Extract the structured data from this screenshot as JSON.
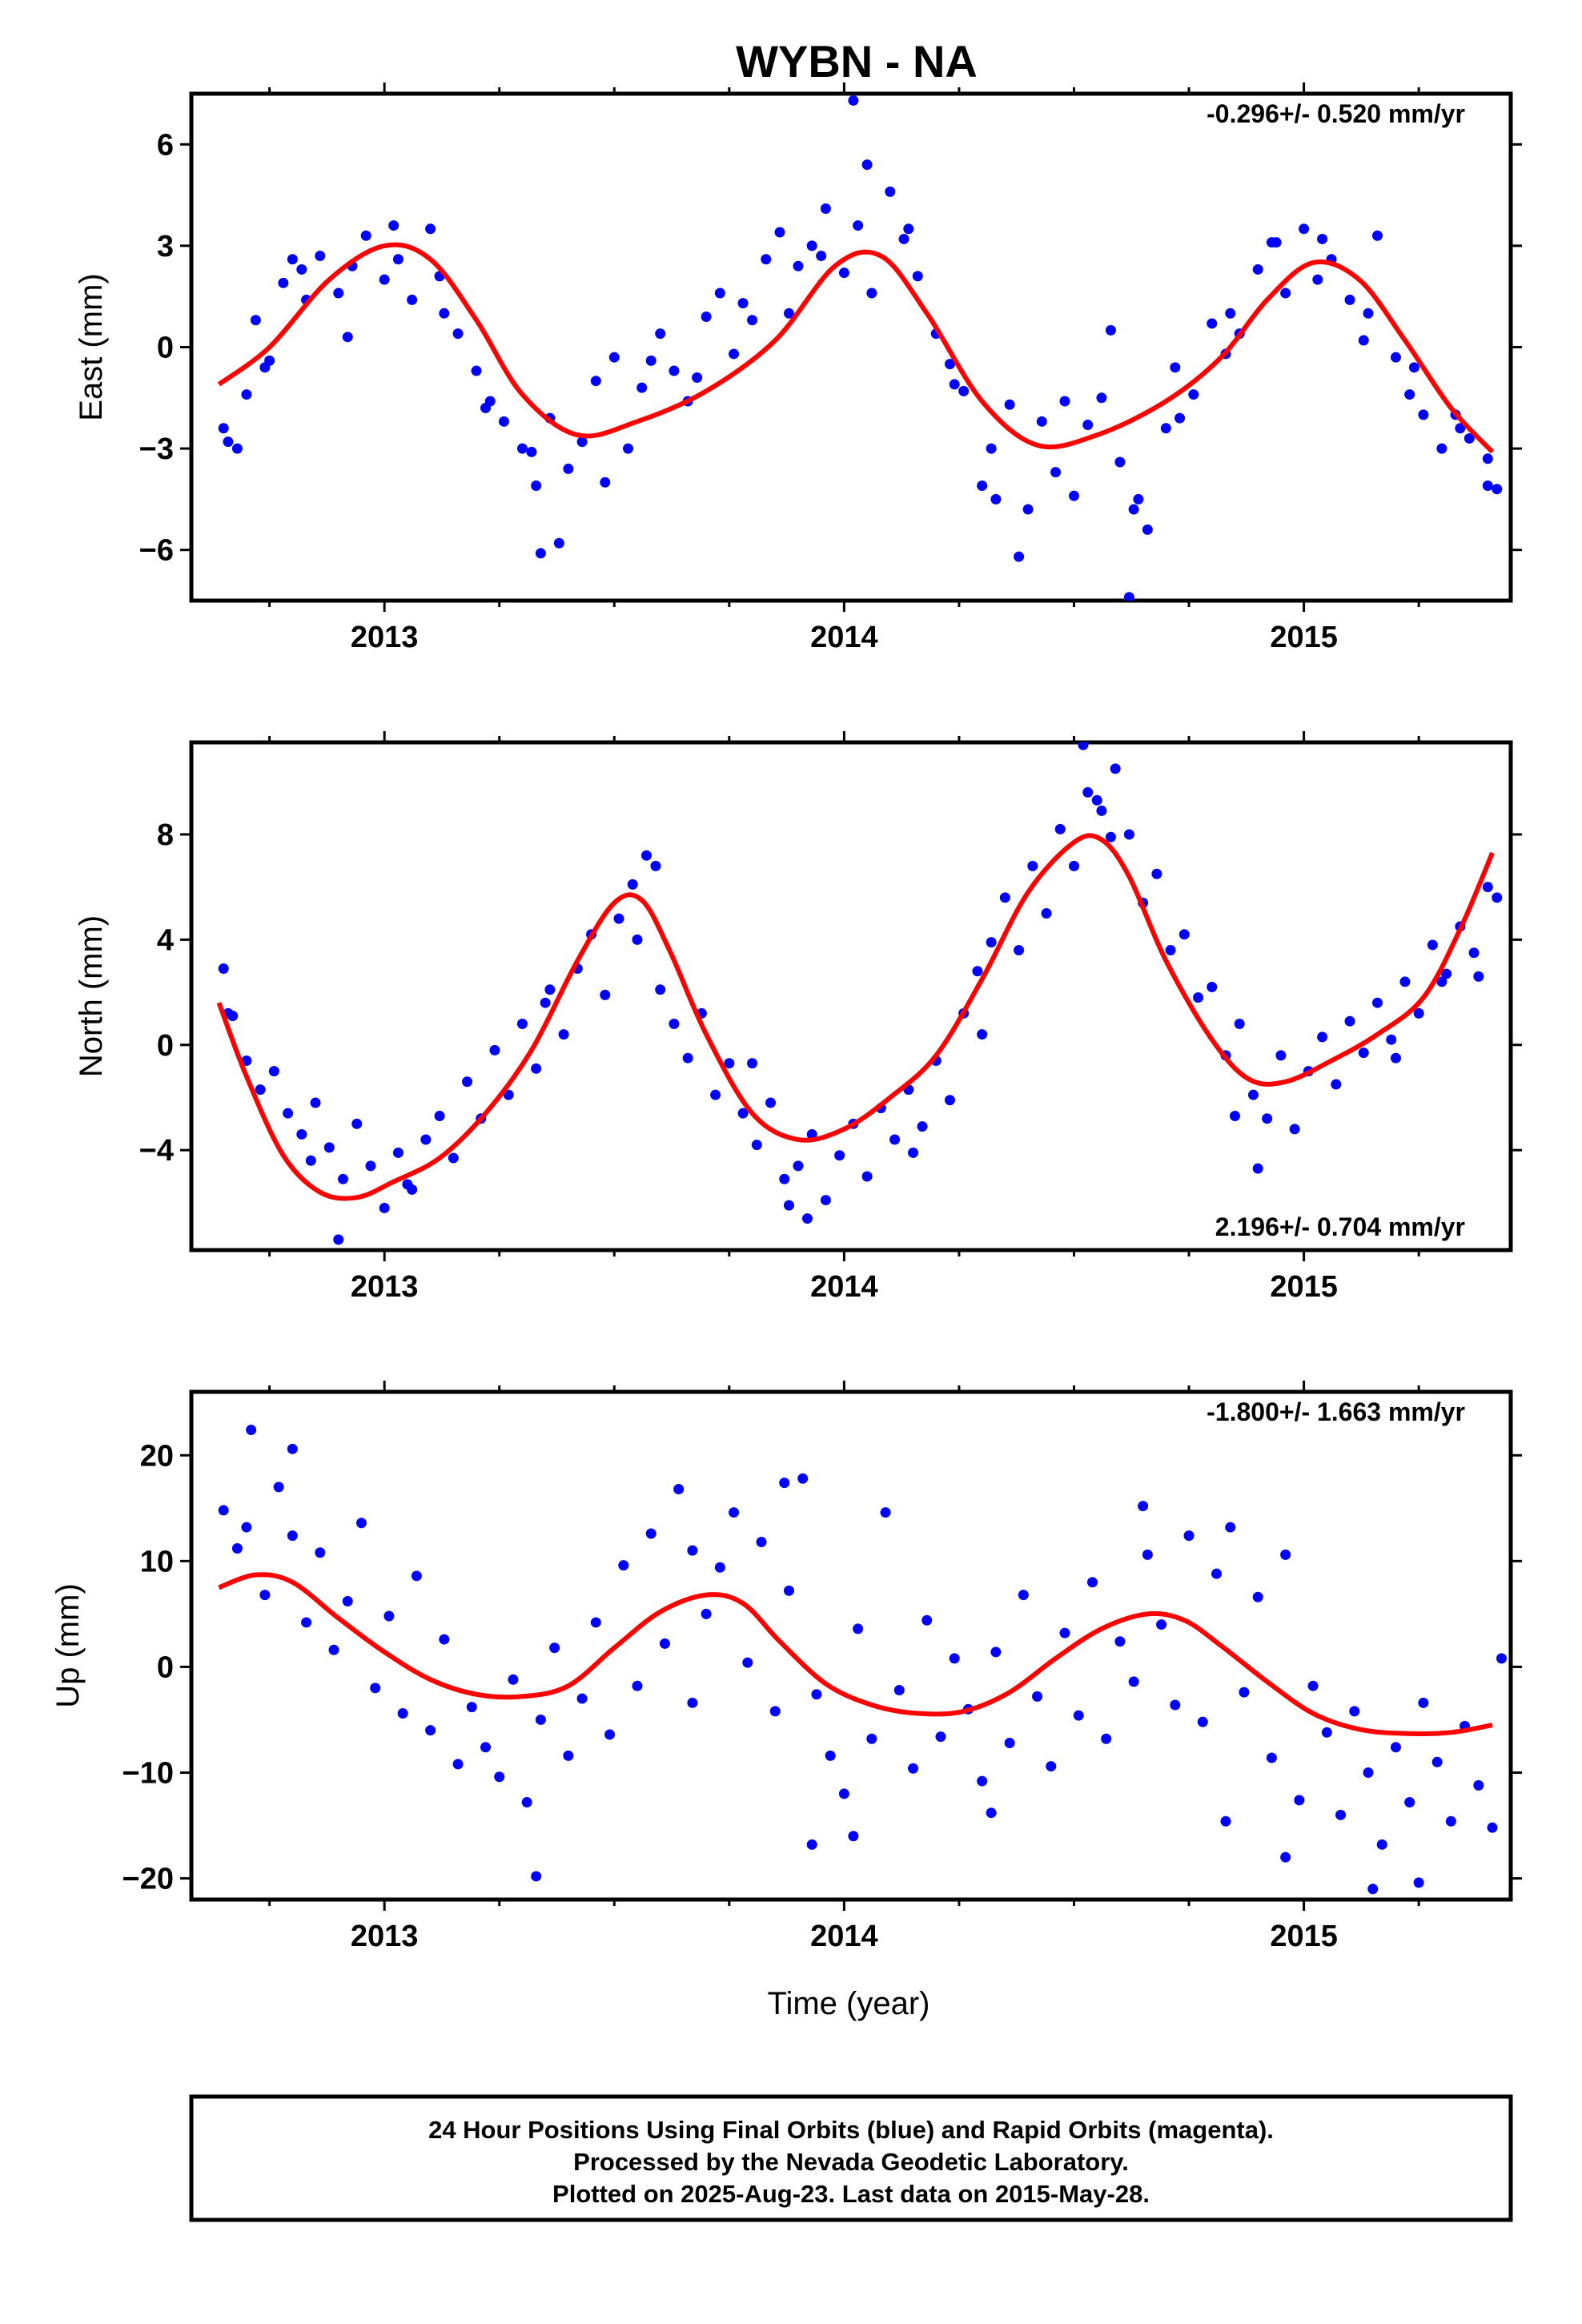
{
  "title": "WYBN - NA",
  "xlabel": "Time (year)",
  "footer": {
    "line1": "24 Hour Positions Using Final Orbits (blue) and Rapid Orbits (magenta).",
    "line2": "Processed by the Nevada Geodetic Laboratory.",
    "line3": "Plotted on 2025-Aug-23. Last data on 2015-May-28."
  },
  "colors": {
    "points": "#0000ff",
    "fit": "#ff0000",
    "axes": "#000000"
  },
  "chart_data": [
    {
      "type": "scatter",
      "component": "east",
      "ylabel": "East (mm)",
      "rate": "-0.296+/- 0.520 mm/yr",
      "rate_position": "top-right",
      "xlim": [
        2012.58,
        2015.45
      ],
      "ylim": [
        -7.5,
        7.5
      ],
      "xticks": [
        2013,
        2014,
        2015
      ],
      "yticks": [
        -6,
        -3,
        0,
        3,
        6
      ],
      "ytick_labels": [
        "−6",
        "−3",
        "0",
        "3",
        "6"
      ],
      "fit": {
        "x": [
          2012.64,
          2012.75,
          2012.88,
          2013.0,
          2013.1,
          2013.2,
          2013.3,
          2013.42,
          2013.55,
          2013.7,
          2013.85,
          2013.98,
          2014.08,
          2014.18,
          2014.3,
          2014.42,
          2014.55,
          2014.7,
          2014.82,
          2014.92,
          2015.02,
          2015.12,
          2015.22,
          2015.32,
          2015.41
        ],
        "y": [
          -1.1,
          0.0,
          2.0,
          3.0,
          2.6,
          0.8,
          -1.4,
          -2.6,
          -2.2,
          -1.3,
          0.2,
          2.4,
          2.7,
          1.0,
          -1.6,
          -2.9,
          -2.6,
          -1.6,
          -0.3,
          1.4,
          2.5,
          2.0,
          0.2,
          -1.8,
          -3.1
        ]
      },
      "points": {
        "x": [
          2012.65,
          2012.68,
          2012.7,
          2012.72,
          2012.75,
          2012.78,
          2012.8,
          2012.83,
          2012.86,
          2012.9,
          2012.93,
          2012.96,
          2013.0,
          2013.03,
          2013.06,
          2013.1,
          2013.13,
          2013.16,
          2013.2,
          2013.23,
          2013.26,
          2013.3,
          2013.33,
          2013.36,
          2013.4,
          2013.43,
          2013.46,
          2013.5,
          2013.53,
          2013.56,
          2013.6,
          2013.63,
          2013.66,
          2013.7,
          2013.73,
          2013.76,
          2013.8,
          2013.83,
          2013.86,
          2013.9,
          2013.93,
          2013.96,
          2014.0,
          2014.03,
          2014.06,
          2014.1,
          2014.13,
          2014.16,
          2014.2,
          2014.23,
          2014.26,
          2014.3,
          2014.33,
          2014.36,
          2014.4,
          2014.43,
          2014.46,
          2014.5,
          2014.53,
          2014.56,
          2014.6,
          2014.63,
          2014.66,
          2014.7,
          2014.73,
          2014.76,
          2014.8,
          2014.83,
          2014.86,
          2014.9,
          2014.93,
          2014.96,
          2015.0,
          2015.03,
          2015.06,
          2015.1,
          2015.13,
          2015.16,
          2015.2,
          2015.23,
          2015.26,
          2015.3,
          2015.33,
          2015.36,
          2015.4,
          2015.42,
          2012.66,
          2012.74,
          2012.82,
          2012.92,
          2013.02,
          2013.12,
          2013.22,
          2013.32,
          2013.38,
          2013.48,
          2013.58,
          2013.68,
          2013.78,
          2013.88,
          2013.95,
          2014.05,
          2014.14,
          2014.24,
          2014.32,
          2014.38,
          2014.48,
          2014.58,
          2014.64,
          2014.72,
          2014.84,
          2014.94,
          2015.04,
          2015.14,
          2015.24,
          2015.34,
          2015.4,
          2014.62,
          2014.02,
          2013.34
        ],
        "y": [
          -2.4,
          -3.0,
          -1.4,
          0.8,
          -0.4,
          1.9,
          2.6,
          1.4,
          2.7,
          1.6,
          2.4,
          3.3,
          2.0,
          2.6,
          1.4,
          3.5,
          1.0,
          0.4,
          -0.7,
          -1.6,
          -2.2,
          -3.0,
          -4.1,
          -2.1,
          -3.6,
          -2.8,
          -1.0,
          -0.3,
          -3.0,
          -1.2,
          0.4,
          -0.7,
          -1.6,
          0.9,
          1.6,
          -0.2,
          0.8,
          2.6,
          3.4,
          2.4,
          3.0,
          4.1,
          2.2,
          3.6,
          1.6,
          4.6,
          3.2,
          2.1,
          0.4,
          -0.5,
          -1.3,
          -4.1,
          -4.5,
          -1.7,
          -4.8,
          -2.2,
          -3.7,
          -4.4,
          -2.3,
          -1.5,
          -3.4,
          -4.8,
          -5.4,
          -2.4,
          -2.1,
          -1.4,
          0.7,
          -0.2,
          0.4,
          2.3,
          3.1,
          1.6,
          3.5,
          2.0,
          2.6,
          1.4,
          0.2,
          3.3,
          -0.3,
          -1.4,
          -2.0,
          -3.0,
          -2.0,
          -2.7,
          -3.3,
          -4.2,
          -2.8,
          -0.6,
          2.3,
          0.3,
          3.6,
          2.1,
          -1.8,
          -3.1,
          -5.8,
          -4.0,
          -0.4,
          -0.9,
          1.3,
          1.0,
          2.7,
          5.4,
          3.5,
          -1.1,
          -3.0,
          -6.2,
          -1.6,
          0.5,
          -4.5,
          -0.6,
          1.0,
          3.1,
          3.2,
          1.0,
          -0.6,
          -2.4,
          -4.1,
          -7.4,
          7.3,
          -6.1
        ],
        "rapid_x": [],
        "rapid_y": []
      }
    },
    {
      "type": "scatter",
      "component": "north",
      "ylabel": "North (mm)",
      "rate": "2.196+/- 0.704 mm/yr",
      "rate_position": "bottom-right",
      "xlim": [
        2012.58,
        2015.45
      ],
      "ylim": [
        -7.8,
        11.5
      ],
      "xticks": [
        2013,
        2014,
        2015
      ],
      "yticks": [
        -4,
        0,
        4,
        8
      ],
      "ytick_labels": [
        "−4",
        "0",
        "4",
        "8"
      ],
      "fit": {
        "x": [
          2012.64,
          2012.7,
          2012.78,
          2012.86,
          2012.94,
          2013.02,
          2013.12,
          2013.22,
          2013.32,
          2013.42,
          2013.5,
          2013.56,
          2013.62,
          2013.7,
          2013.8,
          2013.9,
          2014.0,
          2014.1,
          2014.2,
          2014.3,
          2014.4,
          2014.5,
          2014.56,
          2014.62,
          2014.7,
          2014.8,
          2014.88,
          2014.96,
          2015.06,
          2015.16,
          2015.26,
          2015.34,
          2015.41
        ],
        "y": [
          1.6,
          -1.2,
          -4.2,
          -5.6,
          -5.8,
          -5.2,
          -4.3,
          -2.6,
          -0.2,
          3.2,
          5.4,
          5.5,
          3.6,
          0.4,
          -2.6,
          -3.6,
          -3.2,
          -2.0,
          -0.4,
          2.5,
          5.8,
          7.7,
          7.8,
          6.4,
          3.2,
          0.2,
          -1.3,
          -1.4,
          -0.6,
          0.4,
          1.8,
          4.4,
          7.3
        ]
      },
      "points": {
        "x": [
          2012.65,
          2012.67,
          2012.7,
          2012.73,
          2012.76,
          2012.79,
          2012.82,
          2012.85,
          2012.88,
          2012.91,
          2012.94,
          2012.97,
          2013.0,
          2013.03,
          2013.06,
          2013.09,
          2013.12,
          2013.15,
          2013.18,
          2013.21,
          2013.24,
          2013.27,
          2013.3,
          2013.33,
          2013.36,
          2013.39,
          2013.42,
          2013.45,
          2013.48,
          2013.51,
          2013.54,
          2013.57,
          2013.6,
          2013.63,
          2013.66,
          2013.69,
          2013.72,
          2013.75,
          2013.78,
          2013.81,
          2013.84,
          2013.87,
          2013.9,
          2013.93,
          2013.96,
          2013.99,
          2014.02,
          2014.05,
          2014.08,
          2014.11,
          2014.14,
          2014.17,
          2014.2,
          2014.23,
          2014.26,
          2014.29,
          2014.32,
          2014.35,
          2014.38,
          2014.41,
          2014.44,
          2014.47,
          2014.5,
          2014.53,
          2014.56,
          2014.59,
          2014.62,
          2014.65,
          2014.68,
          2014.71,
          2014.74,
          2014.77,
          2014.8,
          2014.83,
          2014.86,
          2014.89,
          2014.92,
          2014.95,
          2014.98,
          2015.01,
          2015.04,
          2015.07,
          2015.1,
          2015.13,
          2015.16,
          2015.19,
          2015.22,
          2015.25,
          2015.28,
          2015.31,
          2015.34,
          2015.37,
          2015.4,
          2015.42,
          2012.66,
          2012.84,
          2012.9,
          2013.05,
          2013.35,
          2013.55,
          2013.59,
          2013.8,
          2013.88,
          2013.92,
          2014.15,
          2014.3,
          2014.52,
          2014.55,
          2014.58,
          2014.85,
          2014.9,
          2015.2,
          2015.3,
          2015.38
        ],
        "y": [
          2.9,
          1.1,
          -0.6,
          -1.7,
          -1.0,
          -2.6,
          -3.4,
          -2.2,
          -3.9,
          -5.1,
          -3.0,
          -4.6,
          -6.2,
          -4.1,
          -5.5,
          -3.6,
          -2.7,
          -4.3,
          -1.4,
          -2.8,
          -0.2,
          -1.9,
          0.8,
          -0.9,
          2.1,
          0.4,
          2.9,
          4.2,
          1.9,
          4.8,
          6.1,
          7.2,
          2.1,
          0.8,
          -0.5,
          1.2,
          -1.9,
          -0.7,
          -2.6,
          -3.8,
          -2.2,
          -5.1,
          -4.6,
          -3.4,
          -5.9,
          -4.2,
          -3.0,
          -5.0,
          -2.4,
          -3.6,
          -1.7,
          -3.1,
          -0.6,
          -2.1,
          1.2,
          2.8,
          3.9,
          5.6,
          3.6,
          6.8,
          5.0,
          8.2,
          6.8,
          9.6,
          8.9,
          10.5,
          8.0,
          5.4,
          6.5,
          3.6,
          4.2,
          1.8,
          2.2,
          -0.4,
          0.8,
          -1.9,
          -2.8,
          -0.4,
          -3.2,
          -1.0,
          0.3,
          -1.5,
          0.9,
          -0.3,
          1.6,
          0.2,
          2.4,
          1.2,
          3.8,
          2.7,
          4.5,
          3.5,
          6.0,
          5.6,
          1.2,
          -4.4,
          -7.4,
          -5.3,
          1.6,
          4.0,
          6.8,
          -0.7,
          -6.1,
          -6.6,
          -4.1,
          0.4,
          11.4,
          9.3,
          7.9,
          -2.7,
          -4.7,
          -0.5,
          2.4,
          2.6
        ],
        "rapid_x": [],
        "rapid_y": []
      }
    },
    {
      "type": "scatter",
      "component": "up",
      "ylabel": "Up (mm)",
      "rate": "-1.800+/- 1.663 mm/yr",
      "rate_position": "top-right",
      "xlim": [
        2012.58,
        2015.45
      ],
      "ylim": [
        -22,
        26
      ],
      "xticks": [
        2013,
        2014,
        2015
      ],
      "yticks": [
        -20,
        -10,
        0,
        10,
        20
      ],
      "ytick_labels": [
        "−20",
        "−10",
        "0",
        "10",
        "20"
      ],
      "fit": {
        "x": [
          2012.64,
          2012.72,
          2012.8,
          2012.9,
          2013.0,
          2013.1,
          2013.2,
          2013.3,
          2013.4,
          2013.5,
          2013.6,
          2013.7,
          2013.78,
          2013.86,
          2013.96,
          2014.06,
          2014.16,
          2014.26,
          2014.36,
          2014.46,
          2014.56,
          2014.66,
          2014.74,
          2014.82,
          2014.92,
          2015.02,
          2015.12,
          2015.22,
          2015.32,
          2015.41
        ],
        "y": [
          7.5,
          8.7,
          8.0,
          4.6,
          1.4,
          -1.2,
          -2.6,
          -2.8,
          -1.8,
          1.8,
          5.2,
          6.8,
          6.0,
          2.4,
          -1.6,
          -3.6,
          -4.4,
          -4.2,
          -2.4,
          0.8,
          3.6,
          5.0,
          4.4,
          2.0,
          -1.4,
          -4.4,
          -5.9,
          -6.3,
          -6.2,
          -5.5
        ]
      },
      "points": {
        "x": [
          2012.65,
          2012.68,
          2012.71,
          2012.74,
          2012.77,
          2012.8,
          2012.83,
          2012.86,
          2012.89,
          2012.92,
          2012.95,
          2012.98,
          2013.01,
          2013.04,
          2013.07,
          2013.1,
          2013.13,
          2013.16,
          2013.19,
          2013.22,
          2013.25,
          2013.28,
          2013.31,
          2013.34,
          2013.37,
          2013.4,
          2013.43,
          2013.46,
          2013.49,
          2013.52,
          2013.55,
          2013.58,
          2013.61,
          2013.64,
          2013.67,
          2013.7,
          2013.73,
          2013.76,
          2013.79,
          2013.82,
          2013.85,
          2013.88,
          2013.91,
          2013.94,
          2013.97,
          2014.0,
          2014.03,
          2014.06,
          2014.09,
          2014.12,
          2014.15,
          2014.18,
          2014.21,
          2014.24,
          2014.27,
          2014.3,
          2014.33,
          2014.36,
          2014.39,
          2014.42,
          2014.45,
          2014.48,
          2014.51,
          2014.54,
          2014.57,
          2014.6,
          2014.63,
          2014.66,
          2014.69,
          2014.72,
          2014.75,
          2014.78,
          2014.81,
          2014.84,
          2014.87,
          2014.9,
          2014.93,
          2014.96,
          2014.99,
          2015.02,
          2015.05,
          2015.08,
          2015.11,
          2015.14,
          2015.17,
          2015.2,
          2015.23,
          2015.26,
          2015.29,
          2015.32,
          2015.35,
          2015.38,
          2015.41,
          2012.7,
          2012.8,
          2013.33,
          2013.93,
          2013.87,
          2014.32,
          2014.02,
          2014.96,
          2015.15,
          2015.25,
          2015.43,
          2013.67,
          2014.65,
          2014.83
        ],
        "y": [
          14.8,
          11.2,
          22.4,
          6.8,
          17.0,
          12.4,
          4.2,
          10.8,
          1.6,
          6.2,
          13.6,
          -2.0,
          4.8,
          -4.4,
          8.6,
          -6.0,
          2.6,
          -9.2,
          -3.8,
          -7.6,
          -10.4,
          -1.2,
          -12.8,
          -5.0,
          1.8,
          -8.4,
          -3.0,
          4.2,
          -6.4,
          9.6,
          -1.8,
          12.6,
          2.2,
          16.8,
          -3.4,
          5.0,
          9.4,
          14.6,
          0.4,
          11.8,
          -4.2,
          7.2,
          17.8,
          -2.6,
          -8.4,
          -12.0,
          3.6,
          -6.8,
          14.6,
          -2.2,
          -9.6,
          4.4,
          -6.6,
          0.8,
          -4.0,
          -10.8,
          1.4,
          -7.2,
          6.8,
          -2.8,
          -9.4,
          3.2,
          -4.6,
          8.0,
          -6.8,
          2.4,
          -1.4,
          10.6,
          4.0,
          -3.6,
          12.4,
          -5.2,
          8.8,
          13.2,
          -2.4,
          6.6,
          -8.6,
          10.6,
          -12.6,
          -1.8,
          -6.2,
          -14.0,
          -4.2,
          -10.0,
          -16.8,
          -7.6,
          -12.8,
          -3.4,
          -9.0,
          -14.6,
          -5.6,
          -11.2,
          -15.2,
          13.2,
          20.6,
          -19.8,
          -16.8,
          17.4,
          -13.8,
          -16.0,
          -18.0,
          -21.0,
          -20.4,
          0.8,
          11.0,
          15.2,
          -14.6
        ],
        "rapid_x": [],
        "rapid_y": []
      }
    }
  ]
}
